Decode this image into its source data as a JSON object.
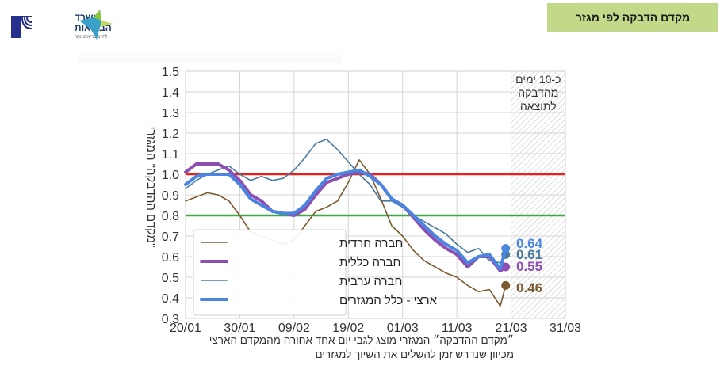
{
  "header": {
    "title": "מקדם הדבקה לפי מגזר",
    "title_bg": "#c3d98a",
    "logo": {
      "ministry_name_line1": "משרד",
      "ministry_name_line2": "הבריאות",
      "slogan": "לחיים בריאים יותר",
      "emblem_icon": "menorah-emblem-icon",
      "star_icon": "ministry-star-icon"
    }
  },
  "caption": {
    "line1": "״מקדם ההדבקה״ המגזרי מוצג לגבי יום אחד אחורה מהמקדם הארצי",
    "line2": "מכיוון שנדרש זמן להשלים את השיוך למגזרים"
  },
  "chart_data": {
    "type": "line",
    "title": "",
    "ylabel": "\"מקדם ההדבקה\" המגזרי",
    "xlabel": "",
    "ylim": [
      0.3,
      1.5
    ],
    "yticks": [
      "1.5",
      "1.4",
      "1.3",
      "1.2",
      "1.1",
      "1.0",
      "0.9",
      "0.8",
      "0.7",
      "0.6",
      "0.5",
      "0.4",
      "0.3"
    ],
    "xticks": [
      "20/01",
      "30/01",
      "09/02",
      "19/02",
      "01/03",
      "11/03",
      "21/03",
      "31/03"
    ],
    "grid": true,
    "reference_lines": [
      {
        "value": 1.0,
        "color": "#e8201c"
      },
      {
        "value": 0.8,
        "color": "#3aa843"
      }
    ],
    "shaded_region": {
      "from": "21/03",
      "to": "31/03",
      "label_line1": "כ-10 ימים",
      "label_line2": "מהדבקה",
      "label_line3": "לתוצאה"
    },
    "legend_position": "lower left",
    "legend": [
      "חברה חרדית",
      "חברה כללית",
      "חברה ערבית",
      "ארצי - כלל המגזרים"
    ],
    "x": [
      "20/01",
      "22/01",
      "24/01",
      "26/01",
      "28/01",
      "30/01",
      "01/02",
      "03/02",
      "05/02",
      "07/02",
      "09/02",
      "11/02",
      "13/02",
      "15/02",
      "17/02",
      "19/02",
      "21/02",
      "23/02",
      "25/02",
      "27/02",
      "01/03",
      "03/03",
      "05/03",
      "07/03",
      "09/03",
      "11/03",
      "13/03",
      "15/03",
      "17/03",
      "19/03",
      "20/03"
    ],
    "series": [
      {
        "name": "חברה חרדית",
        "color": "#7a5a2e",
        "width": 1.6,
        "values": [
          0.87,
          0.89,
          0.91,
          0.9,
          0.87,
          0.8,
          0.72,
          0.7,
          0.68,
          0.66,
          0.68,
          0.75,
          0.82,
          0.84,
          0.87,
          0.96,
          1.07,
          1.0,
          0.88,
          0.75,
          0.7,
          0.63,
          0.58,
          0.55,
          0.52,
          0.5,
          0.46,
          0.43,
          0.44,
          0.36,
          0.46
        ],
        "end_label": "0.46"
      },
      {
        "name": "חברה כללית",
        "color": "#8e4fb5",
        "width": 4,
        "values": [
          1.01,
          1.05,
          1.05,
          1.05,
          1.02,
          0.97,
          0.9,
          0.87,
          0.82,
          0.81,
          0.8,
          0.83,
          0.9,
          0.96,
          0.98,
          1.0,
          1.01,
          1.0,
          0.95,
          0.88,
          0.85,
          0.79,
          0.73,
          0.68,
          0.64,
          0.61,
          0.55,
          0.6,
          0.6,
          0.53,
          0.55
        ],
        "end_label": "0.55"
      },
      {
        "name": "חברה ערבית",
        "color": "#4a7a9e",
        "width": 1.6,
        "values": [
          0.93,
          0.97,
          1.0,
          1.02,
          1.04,
          1.0,
          0.97,
          0.99,
          0.97,
          0.98,
          1.02,
          1.08,
          1.15,
          1.17,
          1.12,
          1.06,
          1.0,
          0.95,
          0.87,
          0.87,
          0.84,
          0.8,
          0.77,
          0.74,
          0.71,
          0.66,
          0.62,
          0.64,
          0.58,
          0.57,
          0.61
        ],
        "end_label": "0.61"
      },
      {
        "name": "ארצי - כלל המגזרים",
        "color": "#4a86e0",
        "width": 4,
        "values": [
          0.95,
          0.99,
          1.0,
          1.0,
          1.0,
          0.95,
          0.88,
          0.85,
          0.82,
          0.81,
          0.81,
          0.85,
          0.92,
          0.98,
          1.0,
          1.01,
          1.02,
          0.99,
          0.95,
          0.88,
          0.85,
          0.8,
          0.75,
          0.7,
          0.66,
          0.63,
          0.57,
          0.6,
          0.61,
          0.54,
          0.64
        ],
        "end_label": "0.64"
      }
    ]
  }
}
